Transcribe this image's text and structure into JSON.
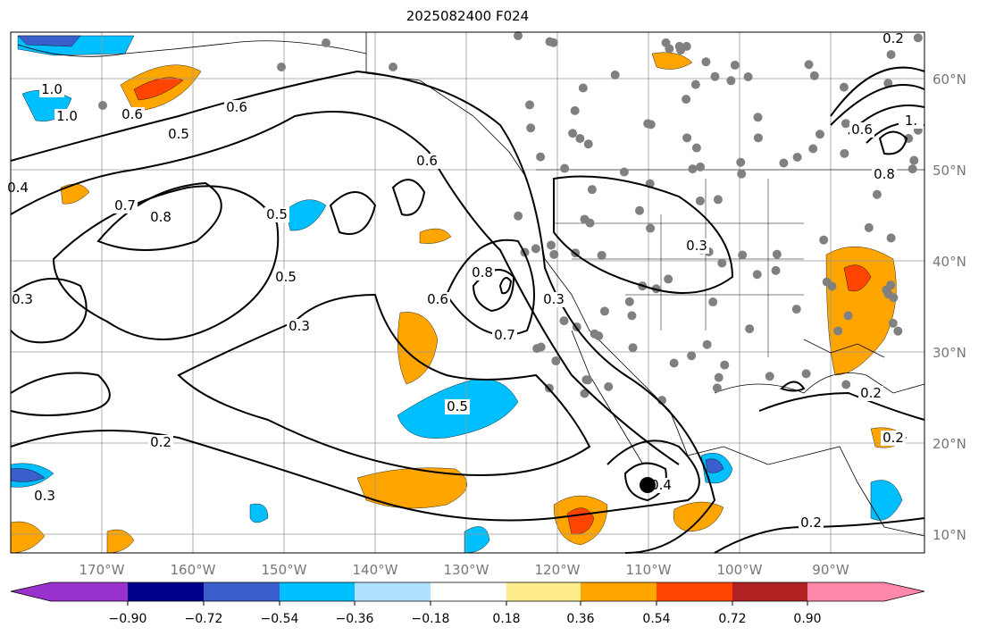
{
  "title": "2025082400 F024",
  "lon_labels": [
    "170°W",
    "160°W",
    "150°W",
    "140°W",
    "130°W",
    "120°W",
    "110°W",
    "100°W",
    "90°W"
  ],
  "lat_labels": [
    "60°N",
    "50°N",
    "40°N",
    "30°N",
    "20°N",
    "10°N"
  ],
  "colorbar": {
    "colors": [
      "#9932cc",
      "#00008b",
      "#3a5fcd",
      "#00bfff",
      "#b0e2ff",
      "#ffffff",
      "#ffec8b",
      "#ffa500",
      "#ff4500",
      "#b22222",
      "#ff88aa"
    ],
    "ticks": [
      "−0.90",
      "−0.72",
      "−0.54",
      "−0.36",
      "−0.18",
      "0.18",
      "0.36",
      "0.54",
      "0.72",
      "0.90"
    ]
  },
  "contour_labels": [
    "1.0",
    "1.0",
    "0.6",
    "0.5",
    "0.6",
    "0.7",
    "0.8",
    "0.5",
    "0.6",
    "0.5",
    "0.3",
    "0.6",
    "0.8",
    "0.7",
    "0.5",
    "0.3",
    "0.4",
    "0.2",
    "0.2",
    "0.2",
    "0.2",
    "0.3",
    "0.3",
    "0.4",
    "0.3",
    "0.6",
    "0.8",
    "1.",
    "0.2"
  ]
}
